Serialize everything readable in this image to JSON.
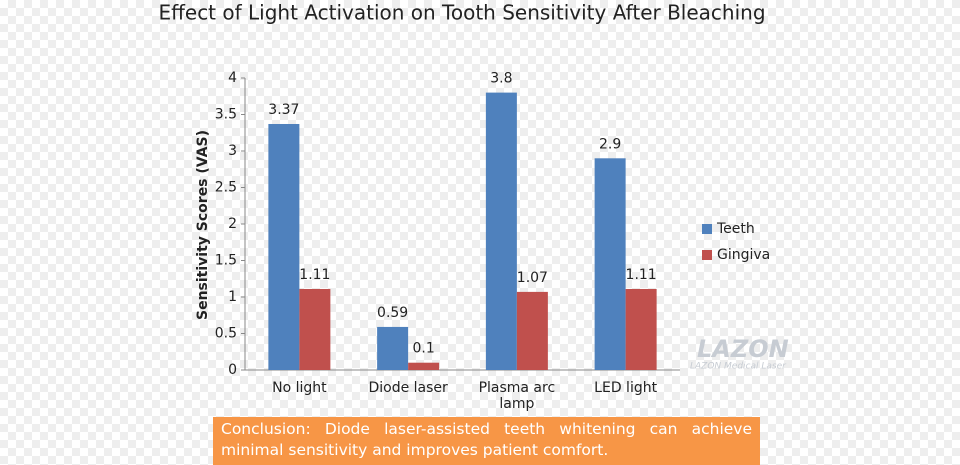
{
  "chart_data": {
    "type": "bar",
    "title": "Effect of Light Activation on Tooth Sensitivity After Bleaching",
    "y_label": "Sensitivity Scores (VAS)",
    "categories": [
      "No light",
      "Diode laser",
      "Plasma arc lamp",
      "LED light"
    ],
    "series": [
      {
        "name": "Teeth",
        "color": "#4f81bd",
        "values": [
          3.37,
          0.59,
          3.8,
          2.9
        ]
      },
      {
        "name": "Gingiva",
        "color": "#c0504d",
        "values": [
          1.11,
          0.1,
          1.07,
          1.11
        ]
      }
    ],
    "ylim": [
      0,
      4
    ],
    "yticks": [
      0,
      0.5,
      1,
      1.5,
      2,
      2.5,
      3,
      3.5,
      4
    ],
    "grid": false,
    "legend": "right"
  },
  "watermark": {
    "logo": "LAZON",
    "tagline": "LAZON Medical Laser"
  },
  "conclusion": "Conclusion: Diode laser-assisted teeth whitening can achieve minimal sensitivity and improves patient comfort."
}
